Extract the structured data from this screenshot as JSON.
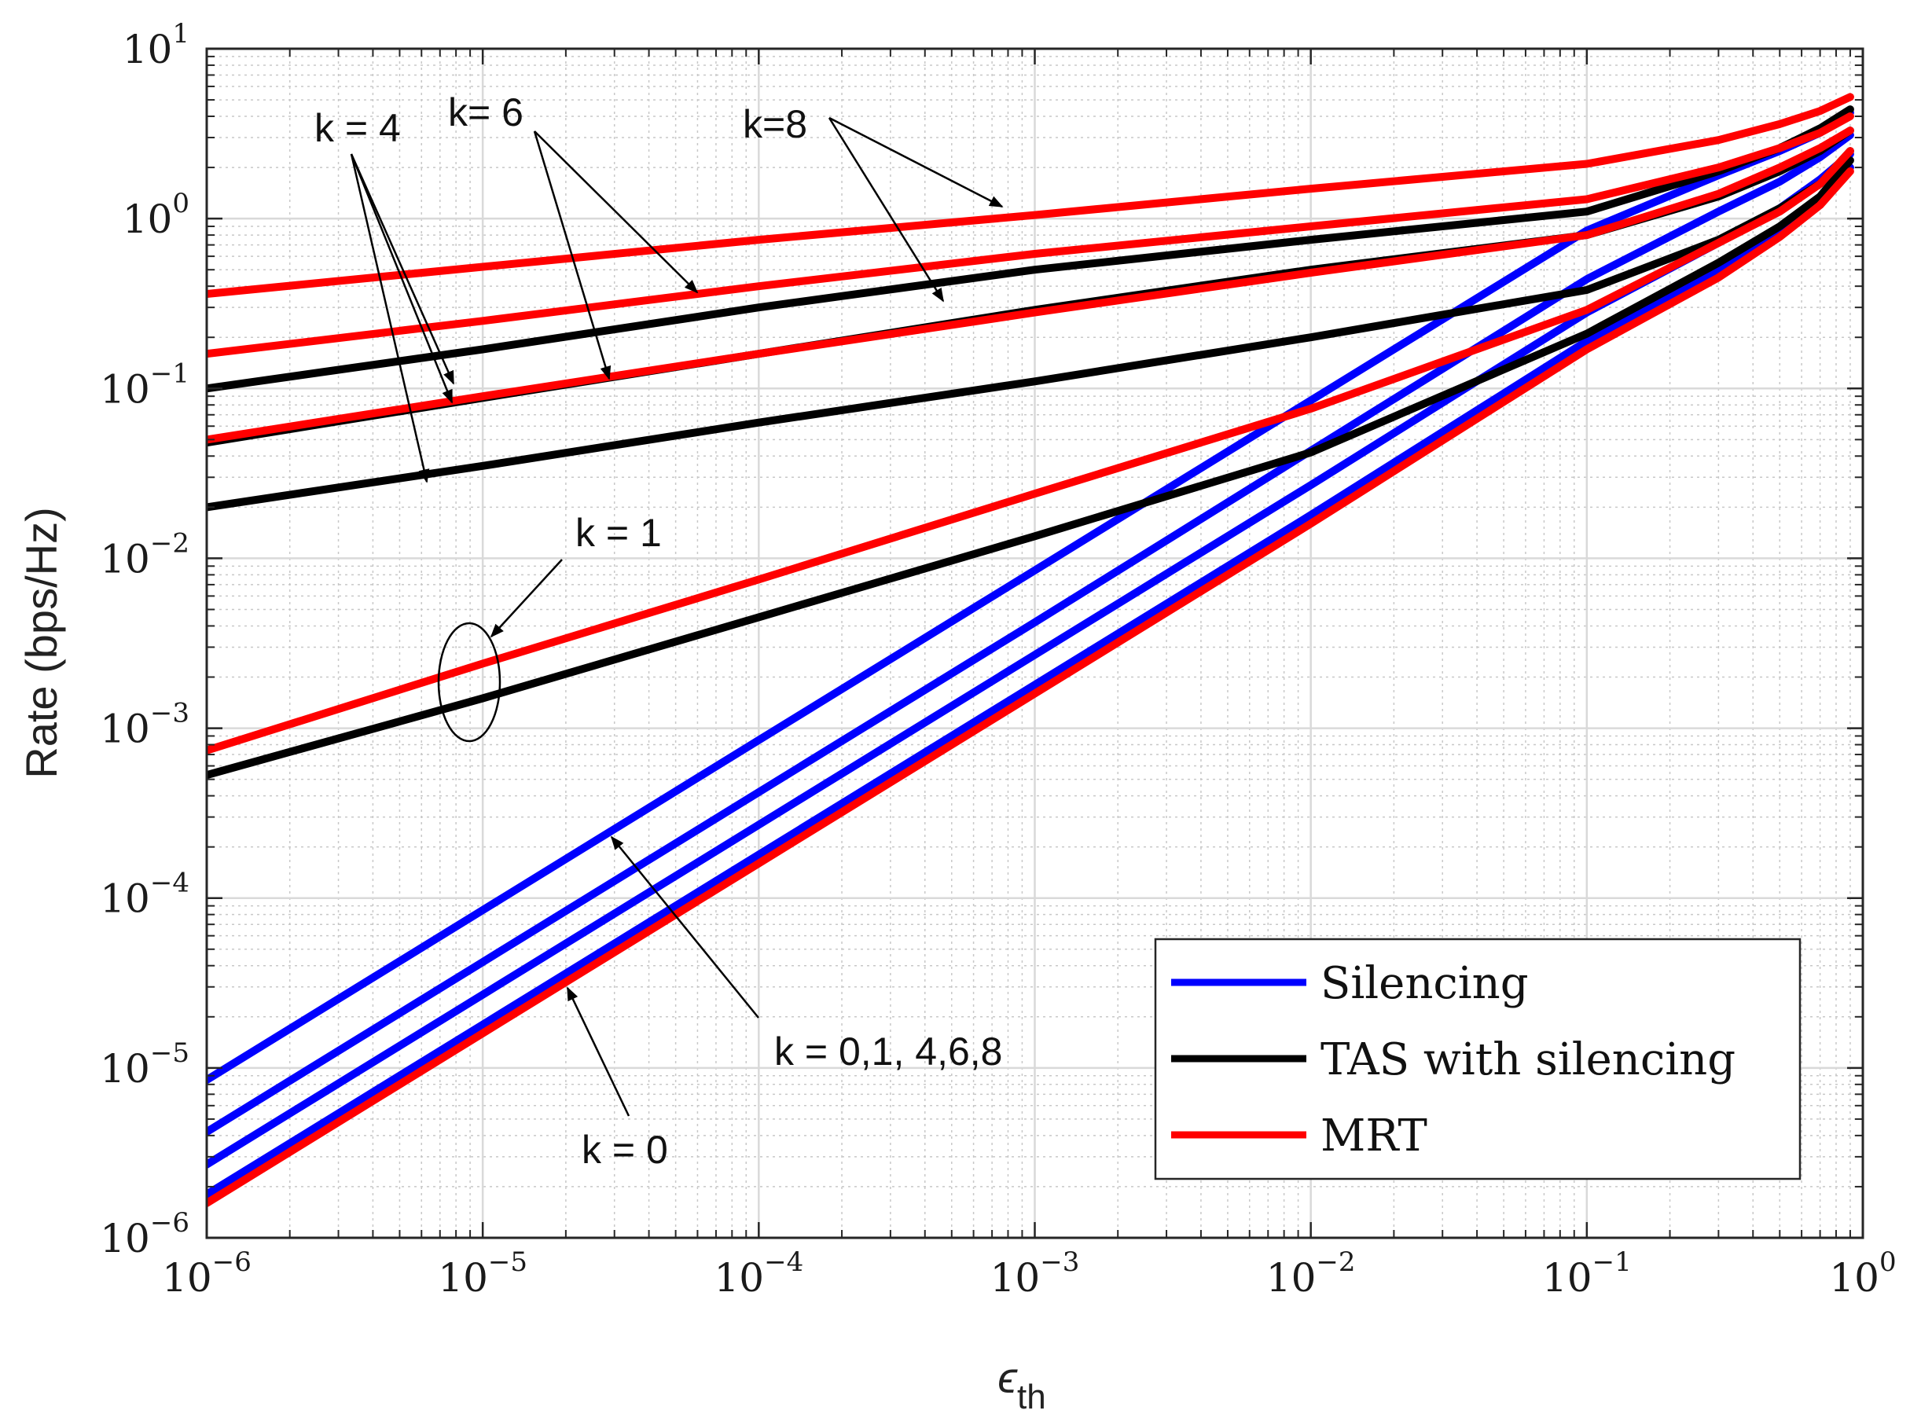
{
  "chart_data": {
    "type": "line",
    "xscale": "log",
    "yscale": "log",
    "xlim": [
      1e-06,
      1
    ],
    "ylim": [
      1e-06,
      10
    ],
    "grid": true,
    "xlabel": "ϵ",
    "xlabel_sub": "th",
    "ylabel": "Rate (bps/Hz)",
    "x_ticks": [
      {
        "base": "10",
        "exp": "−6"
      },
      {
        "base": "10",
        "exp": "−5"
      },
      {
        "base": "10",
        "exp": "−4"
      },
      {
        "base": "10",
        "exp": "−3"
      },
      {
        "base": "10",
        "exp": "−2"
      },
      {
        "base": "10",
        "exp": "−1"
      },
      {
        "base": "10",
        "exp": "0"
      }
    ],
    "y_ticks": [
      {
        "base": "10",
        "exp": "−6"
      },
      {
        "base": "10",
        "exp": "−5"
      },
      {
        "base": "10",
        "exp": "−4"
      },
      {
        "base": "10",
        "exp": "−3"
      },
      {
        "base": "10",
        "exp": "−2"
      },
      {
        "base": "10",
        "exp": "−1"
      },
      {
        "base": "10",
        "exp": "0"
      },
      {
        "base": "10",
        "exp": "1"
      }
    ],
    "legend": {
      "location": "lower-right",
      "entries": [
        {
          "label": "Silencing",
          "color": "#0000ff"
        },
        {
          "label": "TAS with silencing",
          "color": "#000000"
        },
        {
          "label": "MRT",
          "color": "#ff0000"
        }
      ]
    },
    "series": [
      {
        "name": "Silencing k=0",
        "color": "#0000ff",
        "x": [
          1e-06,
          1e-05,
          0.0001,
          0.001,
          0.01,
          0.1,
          0.3,
          0.5,
          0.7,
          0.9
        ],
        "y": [
          1.8e-06,
          1.8e-05,
          0.00018,
          0.0018,
          0.018,
          0.19,
          0.5,
          0.83,
          1.25,
          2.0
        ]
      },
      {
        "name": "Silencing k=1",
        "color": "#0000ff",
        "x": [
          1e-06,
          1e-05,
          0.0001,
          0.001,
          0.01,
          0.1,
          0.3,
          0.5,
          0.7,
          0.9
        ],
        "y": [
          2.7e-06,
          2.7e-05,
          0.00027,
          0.0027,
          0.027,
          0.28,
          0.72,
          1.15,
          1.7,
          2.4
        ]
      },
      {
        "name": "Silencing k=4",
        "color": "#0000ff",
        "x": [
          1e-06,
          1e-05,
          0.0001,
          0.001,
          0.01,
          0.1,
          0.3,
          0.5,
          0.7,
          0.9
        ],
        "y": [
          4.2e-06,
          4.2e-05,
          0.00042,
          0.0042,
          0.043,
          0.44,
          1.1,
          1.65,
          2.3,
          3.1
        ]
      },
      {
        "name": "Silencing k=6",
        "color": "#0000ff",
        "x": [
          1e-06,
          1e-05,
          0.0001,
          0.001,
          0.01,
          0.1,
          0.3,
          0.5,
          0.7,
          0.9
        ],
        "y": [
          8.5e-06,
          8.5e-05,
          0.00085,
          0.0085,
          0.085,
          0.85,
          1.8,
          2.5,
          3.2,
          4.2
        ]
      },
      {
        "name": "TAS with silencing k=1",
        "color": "#000000",
        "x": [
          1e-06,
          1e-05,
          0.0001,
          0.001,
          0.01,
          0.1,
          0.3,
          0.5,
          0.7,
          0.9
        ],
        "y": [
          0.00053,
          0.0015,
          0.0045,
          0.0135,
          0.042,
          0.21,
          0.55,
          0.9,
          1.35,
          2.2
        ]
      },
      {
        "name": "TAS with silencing k=4",
        "color": "#000000",
        "x": [
          1e-06,
          1e-05,
          0.0001,
          0.001,
          0.01,
          0.1,
          0.3,
          0.5,
          0.7,
          0.9
        ],
        "y": [
          0.02,
          0.035,
          0.063,
          0.11,
          0.2,
          0.38,
          0.75,
          1.15,
          1.6,
          2.5
        ]
      },
      {
        "name": "TAS with silencing k=6",
        "color": "#000000",
        "x": [
          1e-06,
          1e-05,
          0.0001,
          0.001,
          0.01,
          0.1,
          0.3,
          0.5,
          0.7,
          0.9
        ],
        "y": [
          0.048,
          0.088,
          0.16,
          0.29,
          0.5,
          0.8,
          1.35,
          1.9,
          2.5,
          3.3
        ]
      },
      {
        "name": "TAS with silencing k=8",
        "color": "#000000",
        "x": [
          1e-06,
          1e-05,
          0.0001,
          0.001,
          0.01,
          0.1,
          0.3,
          0.5,
          0.7,
          0.9
        ],
        "y": [
          0.1,
          0.17,
          0.3,
          0.5,
          0.75,
          1.1,
          1.9,
          2.6,
          3.4,
          4.4
        ]
      },
      {
        "name": "MRT k=0",
        "color": "#ff0000",
        "x": [
          1e-06,
          1e-05,
          0.0001,
          0.001,
          0.01,
          0.1,
          0.3,
          0.5,
          0.7,
          0.9
        ],
        "y": [
          1.6e-06,
          1.6e-05,
          0.00016,
          0.0016,
          0.016,
          0.17,
          0.45,
          0.78,
          1.2,
          1.9
        ]
      },
      {
        "name": "MRT k=1",
        "color": "#ff0000",
        "x": [
          1e-06,
          1e-05,
          0.0001,
          0.001,
          0.01,
          0.1,
          0.3,
          0.5,
          0.7,
          0.9
        ],
        "y": [
          0.00074,
          0.0024,
          0.0075,
          0.024,
          0.076,
          0.29,
          0.72,
          1.1,
          1.6,
          2.5
        ]
      },
      {
        "name": "MRT k=4",
        "color": "#ff0000",
        "x": [
          1e-06,
          1e-05,
          0.0001,
          0.001,
          0.01,
          0.1,
          0.3,
          0.5,
          0.7,
          0.9
        ],
        "y": [
          0.05,
          0.09,
          0.16,
          0.28,
          0.48,
          0.8,
          1.4,
          2.0,
          2.6,
          3.3
        ]
      },
      {
        "name": "MRT k=6",
        "color": "#ff0000",
        "x": [
          1e-06,
          1e-05,
          0.0001,
          0.001,
          0.01,
          0.1,
          0.3,
          0.5,
          0.7,
          0.9
        ],
        "y": [
          0.16,
          0.25,
          0.4,
          0.62,
          0.9,
          1.3,
          2.0,
          2.6,
          3.2,
          4.0
        ]
      },
      {
        "name": "MRT k=8",
        "color": "#ff0000",
        "x": [
          1e-06,
          1e-05,
          0.0001,
          0.001,
          0.01,
          0.1,
          0.3,
          0.5,
          0.7,
          0.9
        ],
        "y": [
          0.36,
          0.52,
          0.75,
          1.05,
          1.5,
          2.1,
          2.9,
          3.6,
          4.3,
          5.2
        ]
      }
    ],
    "annotations": {
      "k4": "k = 4",
      "k6": "k= 6",
      "k8": "k=8",
      "k1": "k = 1",
      "kall": "k = 0,1, 4,6,8",
      "k0": "k = 0"
    }
  }
}
